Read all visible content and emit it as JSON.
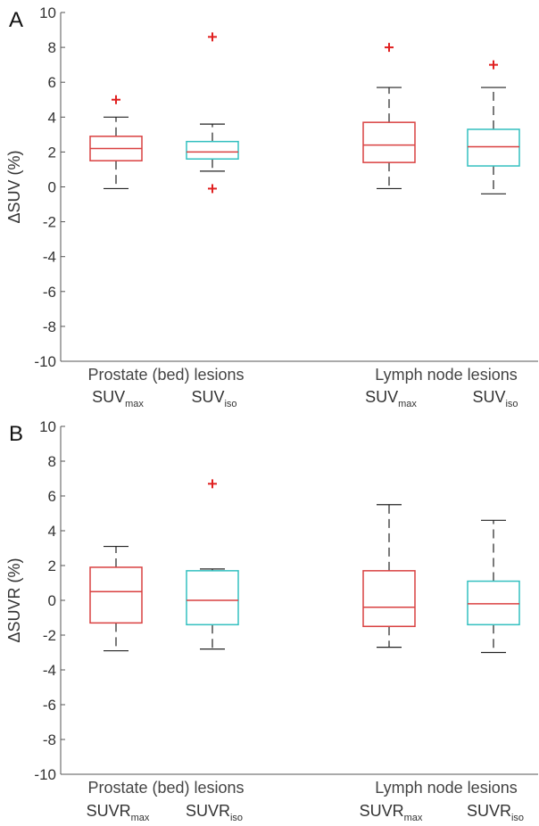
{
  "chart_data": [
    {
      "panel_label": "A",
      "type": "boxplot",
      "ylabel": "ΔSUV (%)",
      "ylim": [
        -10,
        10
      ],
      "yticks": [
        -10,
        -8,
        -6,
        -4,
        -2,
        0,
        2,
        4,
        6,
        8,
        10
      ],
      "groups": [
        "Prostate (bed) lesions",
        "Lymph node lesions"
      ],
      "boxes": [
        {
          "label": "SUV",
          "sub": "max",
          "group": 0,
          "color": "#d94040",
          "q1": 1.5,
          "median": 2.2,
          "q3": 2.9,
          "whisker_low": -0.1,
          "whisker_high": 4.0,
          "outliers": [
            5.0
          ]
        },
        {
          "label": "SUV",
          "sub": "iso",
          "group": 0,
          "color": "#33c0c0",
          "q1": 1.6,
          "median": 2.0,
          "q3": 2.6,
          "whisker_low": 0.9,
          "whisker_high": 3.6,
          "outliers": [
            8.6,
            -0.1
          ]
        },
        {
          "label": "SUV",
          "sub": "max",
          "group": 1,
          "color": "#d94040",
          "q1": 1.4,
          "median": 2.4,
          "q3": 3.7,
          "whisker_low": -0.1,
          "whisker_high": 5.7,
          "outliers": [
            8.0
          ]
        },
        {
          "label": "SUV",
          "sub": "iso",
          "group": 1,
          "color": "#33c0c0",
          "q1": 1.2,
          "median": 2.3,
          "q3": 3.3,
          "whisker_low": -0.4,
          "whisker_high": 5.7,
          "outliers": [
            7.0
          ]
        }
      ]
    },
    {
      "panel_label": "B",
      "type": "boxplot",
      "ylabel": "ΔSUVR (%)",
      "ylim": [
        -10,
        10
      ],
      "yticks": [
        -10,
        -8,
        -6,
        -4,
        -2,
        0,
        2,
        4,
        6,
        8,
        10
      ],
      "groups": [
        "Prostate (bed) lesions",
        "Lymph node lesions"
      ],
      "boxes": [
        {
          "label": "SUVR",
          "sub": "max",
          "group": 0,
          "color": "#d94040",
          "q1": -1.3,
          "median": 0.5,
          "q3": 1.9,
          "whisker_low": -2.9,
          "whisker_high": 3.1,
          "outliers": []
        },
        {
          "label": "SUVR",
          "sub": "iso",
          "group": 0,
          "color": "#33c0c0",
          "q1": -1.4,
          "median": 0.0,
          "q3": 1.7,
          "whisker_low": -2.8,
          "whisker_high": 1.8,
          "outliers": [
            6.7
          ]
        },
        {
          "label": "SUVR",
          "sub": "max",
          "group": 1,
          "color": "#d94040",
          "q1": -1.5,
          "median": -0.4,
          "q3": 1.7,
          "whisker_low": -2.7,
          "whisker_high": 5.5,
          "outliers": []
        },
        {
          "label": "SUVR",
          "sub": "iso",
          "group": 1,
          "color": "#33c0c0",
          "q1": -1.4,
          "median": -0.2,
          "q3": 1.1,
          "whisker_low": -3.0,
          "whisker_high": 4.6,
          "outliers": []
        }
      ]
    }
  ]
}
